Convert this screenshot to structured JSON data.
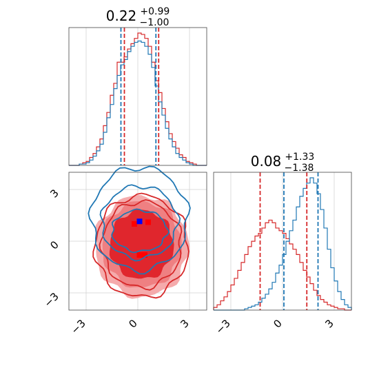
{
  "chart_data": [
    {
      "type": "histogram",
      "panel": "top-left",
      "title": {
        "value": "0.22",
        "sup": "+0.99",
        "sub": "−1.00"
      },
      "xlim": [
        -4,
        4
      ],
      "grid": true,
      "series": [
        {
          "color": "#d62728",
          "edges": [
            -4,
            -3.8,
            -3.6,
            -3.4,
            -3.2,
            -3,
            -2.8,
            -2.6,
            -2.4,
            -2.2,
            -2,
            -1.8,
            -1.6,
            -1.4,
            -1.2,
            -1,
            -0.8,
            -0.6,
            -0.4,
            -0.2,
            0,
            0.2,
            0.4,
            0.6,
            0.8,
            1,
            1.2,
            1.4,
            1.6,
            1.8,
            2,
            2.2,
            2.4,
            2.6,
            2.8,
            3,
            3.2,
            3.4,
            3.6,
            3.8,
            4
          ],
          "counts": [
            0,
            0,
            0,
            0.01,
            0.02,
            0.03,
            0.06,
            0.09,
            0.14,
            0.2,
            0.3,
            0.4,
            0.53,
            0.62,
            0.78,
            0.78,
            0.82,
            0.88,
            0.92,
            0.96,
            1.0,
            0.99,
            0.96,
            0.9,
            0.78,
            0.64,
            0.55,
            0.43,
            0.33,
            0.24,
            0.18,
            0.13,
            0.08,
            0.06,
            0.03,
            0.02,
            0.01,
            0,
            0,
            0
          ]
        },
        {
          "color": "#1f77b4",
          "edges": [
            -4,
            -3.8,
            -3.6,
            -3.4,
            -3.2,
            -3,
            -2.8,
            -2.6,
            -2.4,
            -2.2,
            -2,
            -1.8,
            -1.6,
            -1.4,
            -1.2,
            -1,
            -0.8,
            -0.6,
            -0.4,
            -0.2,
            0,
            0.2,
            0.4,
            0.6,
            0.8,
            1,
            1.2,
            1.4,
            1.6,
            1.8,
            2,
            2.2,
            2.4,
            2.6,
            2.8,
            3,
            3.2,
            3.4,
            3.6,
            3.8,
            4
          ],
          "counts": [
            0,
            0,
            0,
            0.01,
            0.01,
            0.02,
            0.04,
            0.07,
            0.11,
            0.16,
            0.25,
            0.36,
            0.46,
            0.58,
            0.68,
            0.76,
            0.8,
            0.86,
            0.9,
            0.93,
            0.94,
            0.93,
            0.9,
            0.84,
            0.74,
            0.6,
            0.48,
            0.38,
            0.28,
            0.2,
            0.14,
            0.09,
            0.06,
            0.04,
            0.02,
            0.01,
            0,
            0,
            0,
            0
          ]
        }
      ],
      "vlines": [
        {
          "x": -0.78,
          "color": "#d62728"
        },
        {
          "x": 1.21,
          "color": "#d62728"
        },
        {
          "x": -0.98,
          "color": "#1f77b4"
        },
        {
          "x": 1.05,
          "color": "#1f77b4"
        }
      ]
    },
    {
      "type": "contour",
      "panel": "bottom-left",
      "xlim": [
        -4,
        4
      ],
      "ylim": [
        -4,
        4
      ],
      "xticks": [
        -3,
        0,
        3
      ],
      "yticks": [
        -3,
        0,
        3
      ],
      "tick_labels": [
        "−3",
        "0",
        "3"
      ],
      "grid": true,
      "series": [
        {
          "color": "#d62728",
          "filled_levels": [
            {
              "cx": 0.22,
              "cy": -0.3,
              "rx": 2.7,
              "ry": 2.95,
              "fill": "#f4a6a8",
              "opacity": 0.95
            },
            {
              "cx": 0.22,
              "cy": -0.2,
              "rx": 2.3,
              "ry": 2.5,
              "fill": "#ee7d80",
              "opacity": 0.95
            },
            {
              "cx": 0.22,
              "cy": -0.2,
              "rx": 1.85,
              "ry": 2.0,
              "fill": "#e0262d",
              "opacity": 1.0
            }
          ],
          "lines": [
            {
              "cx": 0.22,
              "cy": -0.3,
              "rx": 2.7,
              "ry": 2.95
            },
            {
              "cx": 0.22,
              "cy": -0.2,
              "rx": 2.3,
              "ry": 2.5
            }
          ],
          "points": [
            {
              "x": -0.2,
              "y": 1.0
            },
            {
              "x": 0.6,
              "y": 1.1
            },
            {
              "x": 0.1,
              "y": -0.8
            },
            {
              "x": 0.4,
              "y": -0.8
            }
          ]
        },
        {
          "color": "#1f77b4",
          "lines": [
            {
              "cx": 0.1,
              "cy": 1.3,
              "rx": 2.8,
              "ry": 3.0
            },
            {
              "cx": 0.1,
              "cy": 1.1,
              "rx": 2.2,
              "ry": 2.1
            },
            {
              "cx": 0.1,
              "cy": 0.6,
              "rx": 1.6,
              "ry": 1.2
            }
          ],
          "points": [
            {
              "x": 0.1,
              "y": 1.15
            }
          ]
        }
      ]
    },
    {
      "type": "histogram",
      "panel": "bottom-right",
      "title": {
        "value": "0.08",
        "sup": "+1.33",
        "sub": "−1.38"
      },
      "xlim": [
        -4,
        4
      ],
      "xticks": [
        -3,
        0,
        3
      ],
      "tick_labels": [
        "−3",
        "0",
        "3"
      ],
      "grid": true,
      "series": [
        {
          "color": "#d62728",
          "edges": [
            -4,
            -3.8,
            -3.6,
            -3.4,
            -3.2,
            -3,
            -2.8,
            -2.6,
            -2.4,
            -2.2,
            -2,
            -1.8,
            -1.6,
            -1.4,
            -1.2,
            -1,
            -0.8,
            -0.6,
            -0.4,
            -0.2,
            0,
            0.2,
            0.4,
            0.6,
            0.8,
            1,
            1.2,
            1.4,
            1.6,
            1.8,
            2,
            2.2,
            2.4,
            2.6,
            2.8,
            3,
            3.2,
            3.4,
            3.6,
            3.8,
            4
          ],
          "counts": [
            0.02,
            0.04,
            0.07,
            0.1,
            0.14,
            0.19,
            0.24,
            0.3,
            0.36,
            0.42,
            0.48,
            0.52,
            0.56,
            0.58,
            0.62,
            0.66,
            0.68,
            0.66,
            0.62,
            0.6,
            0.58,
            0.54,
            0.5,
            0.46,
            0.42,
            0.36,
            0.3,
            0.25,
            0.2,
            0.15,
            0.11,
            0.08,
            0.06,
            0.04,
            0.03,
            0.02,
            0.01,
            0.01,
            0,
            0
          ]
        },
        {
          "color": "#1f77b4",
          "edges": [
            -4,
            -3.8,
            -3.6,
            -3.4,
            -3.2,
            -3,
            -2.8,
            -2.6,
            -2.4,
            -2.2,
            -2,
            -1.8,
            -1.6,
            -1.4,
            -1.2,
            -1,
            -0.8,
            -0.6,
            -0.4,
            -0.2,
            0,
            0.2,
            0.4,
            0.6,
            0.8,
            1,
            1.2,
            1.4,
            1.6,
            1.8,
            2,
            2.2,
            2.4,
            2.6,
            2.8,
            3,
            3.2,
            3.4,
            3.6,
            3.8,
            4
          ],
          "counts": [
            0,
            0,
            0,
            0,
            0,
            0,
            0,
            0,
            0,
            0.01,
            0.02,
            0.03,
            0.04,
            0.06,
            0.09,
            0.12,
            0.16,
            0.21,
            0.28,
            0.34,
            0.42,
            0.52,
            0.6,
            0.68,
            0.78,
            0.86,
            0.92,
            0.96,
            1.0,
            0.96,
            0.88,
            0.76,
            0.62,
            0.46,
            0.32,
            0.22,
            0.14,
            0.08,
            0.04,
            0.02
          ]
        }
      ],
      "vlines": [
        {
          "x": -1.3,
          "color": "#d62728"
        },
        {
          "x": 1.41,
          "color": "#d62728"
        },
        {
          "x": 0.08,
          "color": "#1f77b4"
        },
        {
          "x": 2.06,
          "color": "#1f77b4"
        }
      ]
    }
  ]
}
